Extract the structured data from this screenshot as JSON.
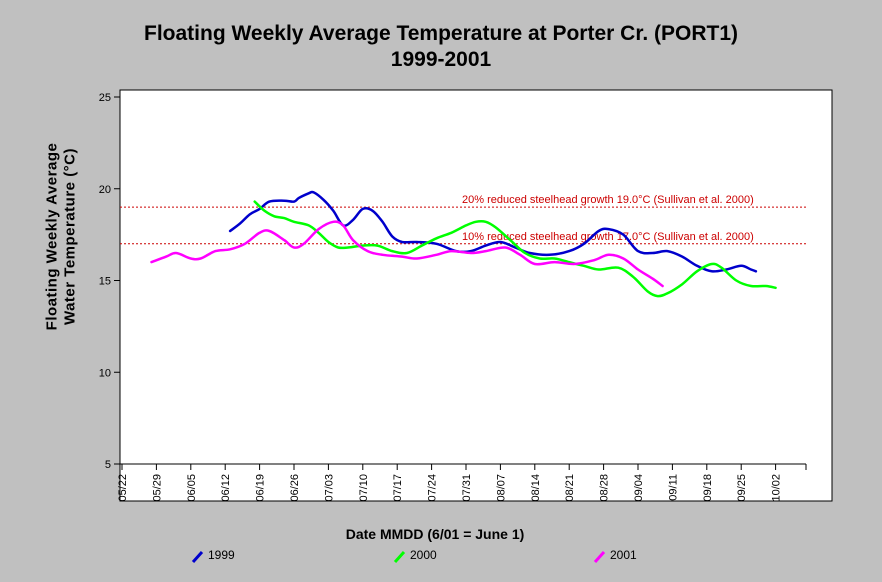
{
  "title": "Floating Weekly Average Temperature at Porter Cr. (PORT1)",
  "subtitle": "1999-2001",
  "chart_data": {
    "type": "line",
    "title": "Floating Weekly Average Temperature at Porter Cr. (PORT1)",
    "subtitle": "1999-2001",
    "xlabel": "Date MMDD (6/01 = June 1)",
    "ylabel_line1": "Floating Weekly Average",
    "ylabel_line2": "Water Temperature (°C)",
    "ylim": [
      5,
      25
    ],
    "yticks": [
      5,
      10,
      15,
      20,
      25
    ],
    "xtick_labels": [
      "05/22",
      "05/29",
      "06/05",
      "06/12",
      "06/19",
      "06/26",
      "07/03",
      "07/10",
      "07/17",
      "07/24",
      "07/31",
      "08/07",
      "08/14",
      "08/21",
      "08/28",
      "09/04",
      "09/11",
      "09/18",
      "09/25",
      "10/02"
    ],
    "grid": false,
    "legend_position": "bottom",
    "reference_lines": [
      {
        "value": 19.0,
        "label": "20% reduced steelhead growth 19.0°C (Sullivan et al. 2000)",
        "color": "#cc0000"
      },
      {
        "value": 17.0,
        "label": "10% reduced steelhead growth 17.0°C (Sullivan et al. 2000)",
        "color": "#cc0000"
      }
    ],
    "series": [
      {
        "name": "1999",
        "color": "#0000cc",
        "points": [
          [
            "06/13",
            17.7
          ],
          [
            "06/15",
            18.1
          ],
          [
            "06/17",
            18.6
          ],
          [
            "06/19",
            18.9
          ],
          [
            "06/21",
            19.3
          ],
          [
            "06/24",
            19.35
          ],
          [
            "06/26",
            19.3
          ],
          [
            "06/27",
            19.5
          ],
          [
            "06/29",
            19.75
          ],
          [
            "06/30",
            19.8
          ],
          [
            "07/02",
            19.4
          ],
          [
            "07/04",
            18.8
          ],
          [
            "07/06",
            18.0
          ],
          [
            "07/08",
            18.3
          ],
          [
            "07/10",
            18.9
          ],
          [
            "07/12",
            18.8
          ],
          [
            "07/14",
            18.2
          ],
          [
            "07/16",
            17.4
          ],
          [
            "07/18",
            17.1
          ],
          [
            "07/21",
            17.1
          ],
          [
            "07/25",
            17.0
          ],
          [
            "07/29",
            16.6
          ],
          [
            "08/01",
            16.6
          ],
          [
            "08/04",
            16.9
          ],
          [
            "08/07",
            17.1
          ],
          [
            "08/10",
            16.8
          ],
          [
            "08/13",
            16.5
          ],
          [
            "08/17",
            16.4
          ],
          [
            "08/21",
            16.6
          ],
          [
            "08/24",
            17.0
          ],
          [
            "08/27",
            17.7
          ],
          [
            "08/29",
            17.8
          ],
          [
            "09/01",
            17.5
          ],
          [
            "09/04",
            16.6
          ],
          [
            "09/07",
            16.5
          ],
          [
            "09/10",
            16.6
          ],
          [
            "09/13",
            16.3
          ],
          [
            "09/16",
            15.8
          ],
          [
            "09/19",
            15.5
          ],
          [
            "09/22",
            15.6
          ],
          [
            "09/25",
            15.8
          ],
          [
            "09/27",
            15.6
          ],
          [
            "09/28",
            15.5
          ]
        ]
      },
      {
        "name": "2000",
        "color": "#00ff00",
        "points": [
          [
            "06/18",
            19.3
          ],
          [
            "06/20",
            18.8
          ],
          [
            "06/22",
            18.5
          ],
          [
            "06/24",
            18.4
          ],
          [
            "06/26",
            18.2
          ],
          [
            "06/29",
            18.0
          ],
          [
            "07/01",
            17.6
          ],
          [
            "07/03",
            17.1
          ],
          [
            "07/05",
            16.8
          ],
          [
            "07/07",
            16.8
          ],
          [
            "07/10",
            16.9
          ],
          [
            "07/13",
            16.9
          ],
          [
            "07/16",
            16.6
          ],
          [
            "07/19",
            16.5
          ],
          [
            "07/22",
            16.9
          ],
          [
            "07/25",
            17.3
          ],
          [
            "07/28",
            17.6
          ],
          [
            "07/31",
            18.0
          ],
          [
            "08/02",
            18.2
          ],
          [
            "08/04",
            18.2
          ],
          [
            "08/06",
            17.9
          ],
          [
            "08/09",
            17.2
          ],
          [
            "08/12",
            16.5
          ],
          [
            "08/15",
            16.2
          ],
          [
            "08/18",
            16.2
          ],
          [
            "08/21",
            16.0
          ],
          [
            "08/24",
            15.8
          ],
          [
            "08/27",
            15.6
          ],
          [
            "08/31",
            15.7
          ],
          [
            "09/03",
            15.2
          ],
          [
            "09/06",
            14.4
          ],
          [
            "09/08",
            14.15
          ],
          [
            "09/10",
            14.3
          ],
          [
            "09/13",
            14.8
          ],
          [
            "09/16",
            15.5
          ],
          [
            "09/19",
            15.9
          ],
          [
            "09/21",
            15.7
          ],
          [
            "09/24",
            15.0
          ],
          [
            "09/27",
            14.7
          ],
          [
            "09/30",
            14.7
          ],
          [
            "10/02",
            14.6
          ]
        ]
      },
      {
        "name": "2001",
        "color": "#ff00ff",
        "points": [
          [
            "05/28",
            16.0
          ],
          [
            "05/31",
            16.3
          ],
          [
            "06/02",
            16.5
          ],
          [
            "06/05",
            16.2
          ],
          [
            "06/07",
            16.2
          ],
          [
            "06/10",
            16.6
          ],
          [
            "06/13",
            16.7
          ],
          [
            "06/16",
            17.0
          ],
          [
            "06/19",
            17.6
          ],
          [
            "06/21",
            17.7
          ],
          [
            "06/24",
            17.2
          ],
          [
            "06/26",
            16.8
          ],
          [
            "06/28",
            17.0
          ],
          [
            "07/01",
            17.8
          ],
          [
            "07/04",
            18.2
          ],
          [
            "07/06",
            18.0
          ],
          [
            "07/08",
            17.2
          ],
          [
            "07/11",
            16.6
          ],
          [
            "07/14",
            16.4
          ],
          [
            "07/18",
            16.3
          ],
          [
            "07/21",
            16.2
          ],
          [
            "07/25",
            16.4
          ],
          [
            "07/28",
            16.6
          ],
          [
            "08/01",
            16.5
          ],
          [
            "08/04",
            16.6
          ],
          [
            "08/08",
            16.8
          ],
          [
            "08/11",
            16.4
          ],
          [
            "08/14",
            15.9
          ],
          [
            "08/18",
            16.0
          ],
          [
            "08/22",
            15.9
          ],
          [
            "08/26",
            16.1
          ],
          [
            "08/29",
            16.4
          ],
          [
            "09/01",
            16.2
          ],
          [
            "09/04",
            15.6
          ],
          [
            "09/07",
            15.1
          ],
          [
            "09/09",
            14.7
          ]
        ]
      }
    ]
  },
  "legend": [
    {
      "label": "1999",
      "color": "#0000cc"
    },
    {
      "label": "2000",
      "color": "#00ff00"
    },
    {
      "label": "2001",
      "color": "#ff00ff"
    }
  ]
}
